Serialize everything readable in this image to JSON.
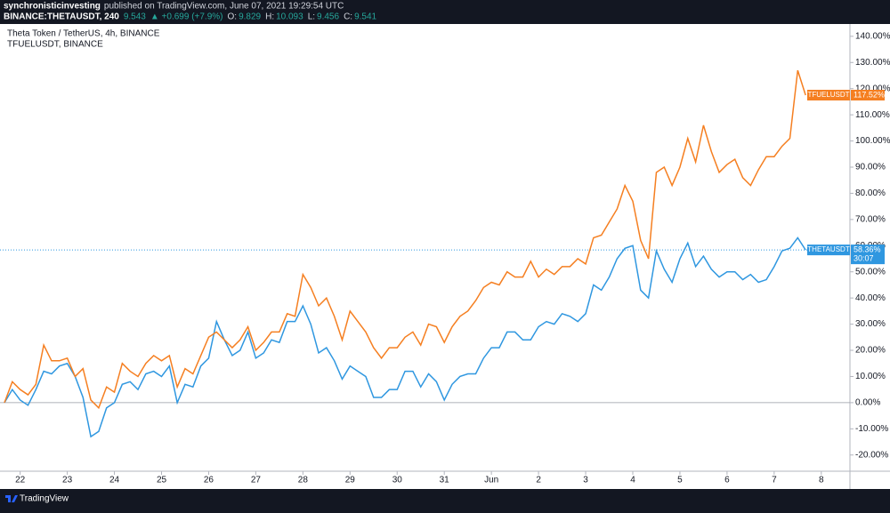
{
  "header": {
    "author": "synchronisticinvesting",
    "published": "published on TradingView.com, June 07, 2021 19:29:54 UTC",
    "symbol": "BINANCE:THETAUSDT, 240",
    "price": "9.543",
    "change": "▲ +0.699 (+7.9%)",
    "ohlc": [
      {
        "key": "O:",
        "val": "9.829"
      },
      {
        "key": "H:",
        "val": "10.093"
      },
      {
        "key": "L:",
        "val": "9.456"
      },
      {
        "key": "C:",
        "val": "9.541"
      }
    ]
  },
  "footer": {
    "brand": "TradingView"
  },
  "chart_data": {
    "type": "line",
    "title": "Theta Token / TetherUS, 4h, BINANCE",
    "subtitle": "TFUELUSDT, BINANCE",
    "categories": [
      null,
      null,
      "22",
      null,
      null,
      null,
      null,
      null,
      "23",
      null,
      null,
      null,
      null,
      null,
      "24",
      null,
      null,
      null,
      null,
      null,
      "25",
      null,
      null,
      null,
      null,
      null,
      "26",
      null,
      null,
      null,
      null,
      null,
      "27",
      null,
      null,
      null,
      null,
      null,
      "28",
      null,
      null,
      null,
      null,
      null,
      "29",
      null,
      null,
      null,
      null,
      null,
      "30",
      null,
      null,
      null,
      null,
      null,
      "31",
      null,
      null,
      null,
      null,
      null,
      "Jun",
      null,
      null,
      null,
      null,
      null,
      "2",
      null,
      null,
      null,
      null,
      null,
      "3",
      null,
      null,
      null,
      null,
      null,
      "4",
      null,
      null,
      null,
      null,
      null,
      "5",
      null,
      null,
      null,
      null,
      null,
      "6",
      null,
      null,
      null,
      null,
      null,
      "7",
      null,
      null,
      null,
      null,
      null,
      "8"
    ],
    "series": [
      {
        "name": "THETAUSDT",
        "color": "#2f97e0",
        "last_value_label": "58.36%",
        "countdown": "30:07",
        "values": [
          0,
          5,
          1,
          -1,
          5,
          12,
          11,
          14,
          15,
          10,
          2,
          -13,
          -11,
          -2,
          0,
          7,
          8,
          5,
          11,
          12,
          10,
          14,
          0,
          7,
          6,
          14,
          17,
          31,
          24,
          18,
          20,
          27,
          17,
          19,
          24,
          23,
          31,
          31,
          37,
          30,
          19,
          21,
          16,
          9,
          14,
          12,
          10,
          2,
          2,
          5,
          5,
          12,
          12,
          6,
          11,
          8,
          1,
          7,
          10,
          11,
          11,
          17,
          21,
          21,
          27,
          27,
          24,
          24,
          29,
          31,
          30,
          34,
          33,
          31,
          34,
          45,
          43,
          48,
          55,
          59,
          60,
          43,
          40,
          58,
          51,
          46,
          55,
          61,
          52,
          56,
          51,
          48,
          50,
          50,
          47,
          49,
          46,
          47,
          52,
          58,
          59,
          63,
          58.36,
          null,
          null
        ]
      },
      {
        "name": "TFUELUSDT",
        "color": "#f57f21",
        "last_value_label": "117.52%",
        "values": [
          0,
          8,
          5,
          3,
          7,
          22,
          16,
          16,
          17,
          10,
          13,
          1,
          -2,
          6,
          4,
          15,
          12,
          10,
          15,
          18,
          16,
          18,
          6,
          13,
          11,
          18,
          25,
          27,
          24,
          21,
          24,
          29,
          20,
          23,
          27,
          27,
          34,
          33,
          49,
          44,
          37,
          40,
          33,
          24,
          35,
          31,
          27,
          21,
          17,
          21,
          21,
          25,
          27,
          22,
          30,
          29,
          23,
          29,
          33,
          35,
          39,
          44,
          46,
          45,
          50,
          48,
          48,
          54,
          48,
          51,
          49,
          52,
          52,
          55,
          53,
          63,
          64,
          69,
          74,
          83,
          77,
          62,
          55,
          88,
          90,
          83,
          90,
          101,
          92,
          106,
          96,
          88,
          91,
          93,
          86,
          83,
          89,
          94,
          94,
          98,
          101,
          127,
          117.52,
          null,
          null
        ]
      }
    ],
    "ylim": [
      -26.2,
      144.7
    ],
    "yticks": [
      {
        "value": -20,
        "label": "-20.00%"
      },
      {
        "value": -10,
        "label": "-10.00%"
      },
      {
        "value": 0,
        "label": "0.00%"
      },
      {
        "value": 10,
        "label": "10.00%"
      },
      {
        "value": 20,
        "label": "20.00%"
      },
      {
        "value": 30,
        "label": "30.00%"
      },
      {
        "value": 40,
        "label": "40.00%"
      },
      {
        "value": 50,
        "label": "50.00%"
      },
      {
        "value": 60,
        "label": "60.00%"
      },
      {
        "value": 70,
        "label": "70.00%"
      },
      {
        "value": 80,
        "label": "80.00%"
      },
      {
        "value": 90,
        "label": "90.00%"
      },
      {
        "value": 100,
        "label": "100.00%"
      },
      {
        "value": 110,
        "label": "110.00%"
      },
      {
        "value": 120,
        "label": "120.00%"
      },
      {
        "value": 130,
        "label": "130.00%"
      },
      {
        "value": 140,
        "label": "140.00%"
      }
    ],
    "grid": false
  }
}
